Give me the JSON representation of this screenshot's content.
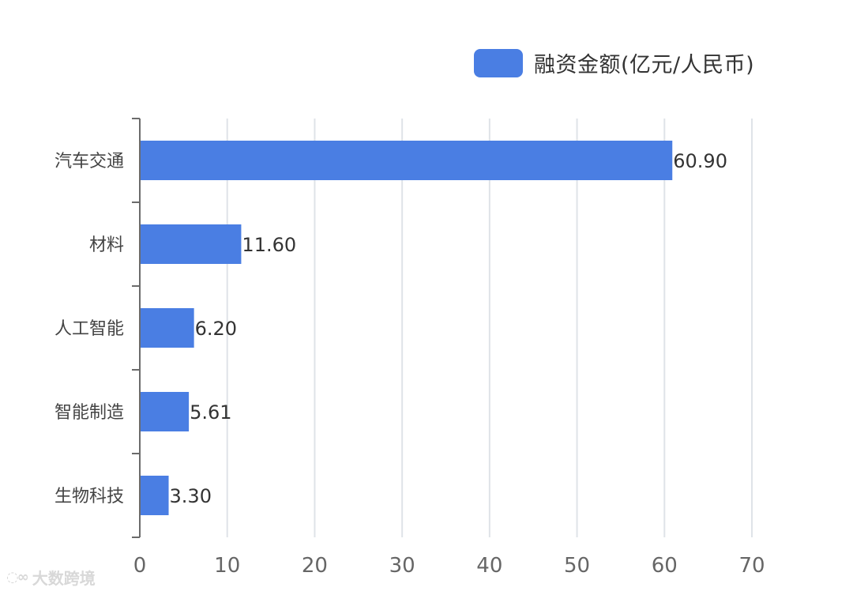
{
  "legend": {
    "label": "融资金额(亿元/人民币)",
    "color": "#4a7ee3"
  },
  "watermark": {
    "text": "大数跨境",
    "icon": "logo-icon"
  },
  "chart_data": {
    "type": "bar",
    "orientation": "horizontal",
    "categories": [
      "汽车交通",
      "材料",
      "人工智能",
      "智能制造",
      "生物科技"
    ],
    "values": [
      60.9,
      11.6,
      6.2,
      5.61,
      3.3
    ],
    "value_labels": [
      "60.90",
      "11.60",
      "6.20",
      "5.61",
      "3.30"
    ],
    "series": [
      {
        "name": "融资金额(亿元/人民币)",
        "values": [
          60.9,
          11.6,
          6.2,
          5.61,
          3.3
        ]
      }
    ],
    "xlim": [
      0,
      70
    ],
    "xticks": [
      0,
      10,
      20,
      30,
      40,
      50,
      60,
      70
    ],
    "grid": true,
    "legend_position": "top-right",
    "bar_color": "#4a7ee3",
    "title": "",
    "xlabel": "",
    "ylabel": ""
  }
}
